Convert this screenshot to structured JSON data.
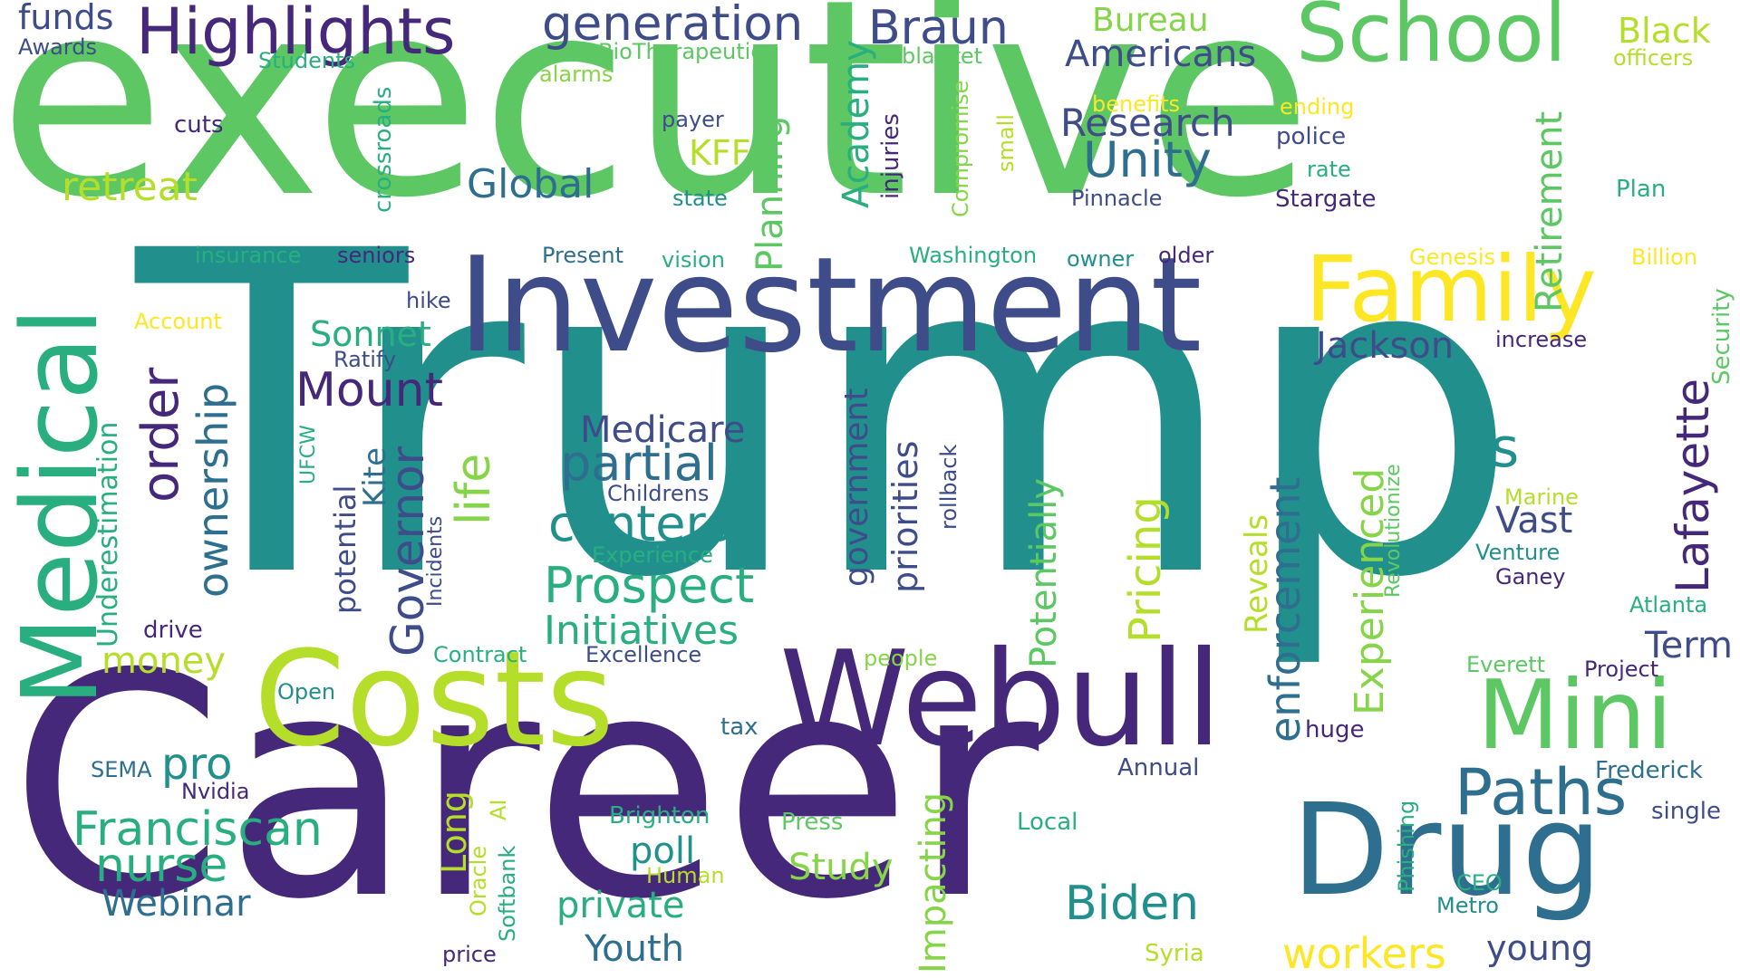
{
  "colors": {
    "background": "#ffffff",
    "dark_purple": "#45287a",
    "indigo": "#3e4c8a",
    "blue": "#2e6e8e",
    "teal": "#21908d",
    "green_teal": "#29af7f",
    "green": "#5dc863",
    "light_green": "#86d549",
    "yellow_green": "#b5de2b",
    "yellow": "#fde725"
  },
  "words": {
    "executive": "executive",
    "trump": "Trump",
    "career": "Career",
    "investment": "Investment",
    "costs": "Costs",
    "webull": "Webull",
    "drug": "Drug",
    "medical": "Medical",
    "school": "School",
    "family": "Family",
    "mini": "Mini",
    "highlights": "Highlights",
    "generation": "generation",
    "braun": "Braun",
    "paths": "Paths",
    "franciscan": "Franciscan",
    "nurse": "nurse",
    "prospect": "Prospect",
    "partial": "partial",
    "centers": "centers",
    "mount": "Mount",
    "unity": "Unity",
    "research": "Research",
    "americans": "Americans",
    "biden": "Biden",
    "workers": "workers",
    "global": "Global",
    "retreat": "retreat",
    "order": "order",
    "ownership": "ownership",
    "governor": "Governor",
    "life": "life",
    "lafayette": "Lafayette",
    "enforcement": "enforcement",
    "pricing": "Pricing",
    "experienced": "Experienced",
    "government": "government",
    "priorities": "priorities",
    "planning": "Planning",
    "academy": "Academy",
    "potentially": "Potentially",
    "impacting": "Impacting",
    "retirement": "Retirement",
    "medicare": "Medicare",
    "initiatives": "Initiatives",
    "jackson": "Jackson",
    "vast": "Vast",
    "term": "Term",
    "s": "s",
    "sonnet": "Sonnet",
    "pro": "pro",
    "webinar": "Webinar",
    "study": "Study",
    "private": "private",
    "youth": "Youth",
    "poll": "poll",
    "young": "young",
    "long": "Long",
    "money": "money",
    "bureau": "Bureau",
    "black": "Black",
    "funds": "funds",
    "awards": "Awards",
    "students": "Students",
    "biotherapeutics": "BioTherapeutics",
    "alarms": "alarms",
    "blanket": "blanket",
    "officers": "officers",
    "cuts": "cuts",
    "payer": "payer",
    "kff": "KFF",
    "state": "state",
    "benefits": "benefits",
    "ending": "ending",
    "police": "police",
    "rate": "rate",
    "stargate": "Stargate",
    "pinnacle": "Pinnacle",
    "plan": "Plan",
    "insurance": "insurance",
    "seniors": "seniors",
    "present": "Present",
    "vision": "vision",
    "washington": "Washington",
    "owner": "owner",
    "older": "older",
    "genesis": "Genesis",
    "billion": "Billion",
    "hike": "hike",
    "account": "Account",
    "ratify": "Ratify",
    "increase": "increase",
    "security": "Security",
    "childrens": "Childrens",
    "experience": "Experience",
    "marine": "Marine",
    "venture": "Venture",
    "ganey": "Ganey",
    "atlanta": "Atlanta",
    "drive": "drive",
    "contract": "Contract",
    "excellence": "Excellence",
    "people": "people",
    "everett": "Everett",
    "project": "Project",
    "open": "Open",
    "tax": "tax",
    "huge": "huge",
    "sema": "SEMA",
    "nvidia": "Nvidia",
    "annual": "Annual",
    "frederick": "Frederick",
    "brighton": "Brighton",
    "press": "Press",
    "local": "Local",
    "single": "single",
    "human": "Human",
    "ceo": "CEO",
    "metro": "Metro",
    "price": "price",
    "syria": "Syria",
    "crossroads": "crossroads",
    "injuries": "injuries",
    "compromise": "Compromise",
    "small": "small",
    "underestimation": "Underestimation",
    "potential": "potential",
    "kite": "Kite",
    "ufcw": "UFCW",
    "incidents": "Incidents",
    "rollback": "rollback",
    "reveals": "Reveals",
    "revolutionize": "Revolutionize",
    "ai": "AI",
    "oracle": "Oracle",
    "softbank": "Softbank",
    "phishing": "Phishing"
  }
}
